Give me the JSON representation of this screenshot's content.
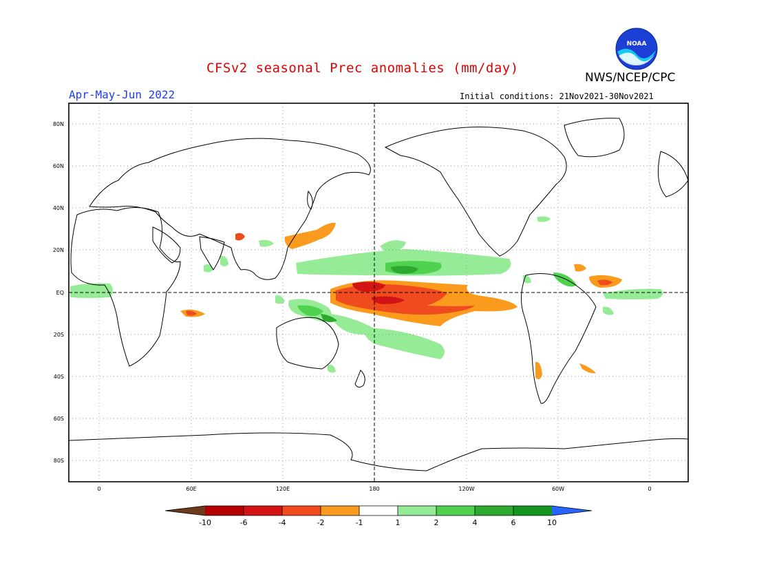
{
  "header": {
    "title": "CFSv2 seasonal Prec anomalies (mm/day)",
    "agency": "NWS/NCEP/CPC",
    "period": "Apr-May-Jun 2022",
    "initial_conditions": "Initial conditions: 21Nov2021-30Nov2021",
    "logo_text": "NOAA"
  },
  "map": {
    "lat_labels": [
      "80N",
      "60N",
      "40N",
      "20N",
      "EQ",
      "20S",
      "40S",
      "60S",
      "80S"
    ],
    "lon_labels": [
      "0",
      "60E",
      "120E",
      "180",
      "120W",
      "60W",
      "0"
    ]
  },
  "colorbar": {
    "unit": "mm/day",
    "tick_labels": [
      "-10",
      "-6",
      "-4",
      "-2",
      "-1",
      "1",
      "2",
      "4",
      "6",
      "10"
    ],
    "colors": {
      "lt_-10": "#6e3a1e",
      "-10_-6": "#b40000",
      "-6_-4": "#d21414",
      "-4_-2": "#f04b1e",
      "-2_-1": "#fa9b1e",
      "-1_1": "#ffffff",
      "1_2": "#96eb96",
      "2_4": "#50d250",
      "4_6": "#2daa2d",
      "6_10": "#14961e",
      "gt_10": "#2864ff"
    }
  }
}
